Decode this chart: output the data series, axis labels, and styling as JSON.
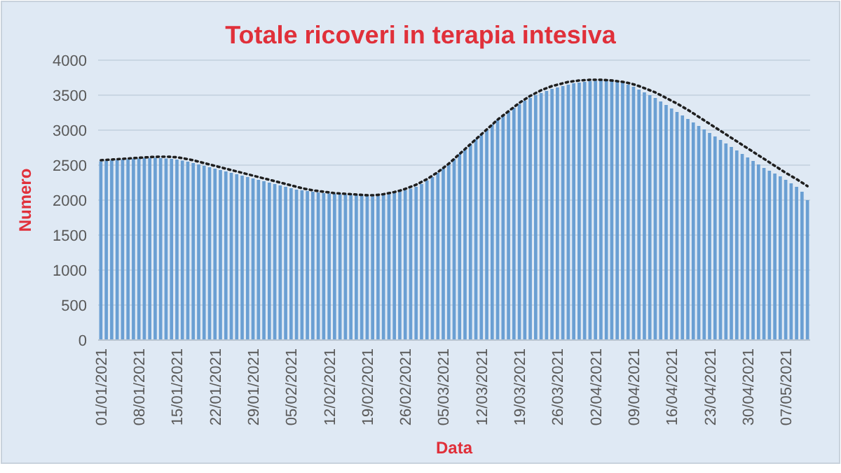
{
  "chart_data": {
    "type": "bar",
    "title": "Totale ricoveri in terapia intesiva",
    "xlabel": "Data",
    "ylabel": "Numero",
    "categories": [
      "01/01/2021",
      null,
      null,
      null,
      null,
      null,
      null,
      "08/01/2021",
      null,
      null,
      null,
      null,
      null,
      null,
      "15/01/2021",
      null,
      null,
      null,
      null,
      null,
      null,
      "22/01/2021",
      null,
      null,
      null,
      null,
      null,
      null,
      "29/01/2021",
      null,
      null,
      null,
      null,
      null,
      null,
      "05/02/2021",
      null,
      null,
      null,
      null,
      null,
      null,
      "12/02/2021",
      null,
      null,
      null,
      null,
      null,
      null,
      "19/02/2021",
      null,
      null,
      null,
      null,
      null,
      null,
      "26/02/2021",
      null,
      null,
      null,
      null,
      null,
      null,
      "05/03/2021",
      null,
      null,
      null,
      null,
      null,
      null,
      "12/03/2021",
      null,
      null,
      null,
      null,
      null,
      null,
      "19/03/2021",
      null,
      null,
      null,
      null,
      null,
      null,
      "26/03/2021",
      null,
      null,
      null,
      null,
      null,
      null,
      "02/04/2021",
      null,
      null,
      null,
      null,
      null,
      null,
      "09/04/2021",
      null,
      null,
      null,
      null,
      null,
      null,
      "16/04/2021",
      null,
      null,
      null,
      null,
      null,
      null,
      "23/04/2021",
      null,
      null,
      null,
      null,
      null,
      null,
      "30/04/2021",
      null,
      null,
      null,
      null,
      null,
      null,
      "07/05/2021",
      null,
      null,
      null,
      null
    ],
    "series": [
      {
        "color": "#6a9fd3",
        "values": [
          2555,
          2565,
          2570,
          2575,
          2580,
          2585,
          2590,
          2595,
          2600,
          2600,
          2605,
          2600,
          2595,
          2590,
          2580,
          2565,
          2550,
          2530,
          2510,
          2490,
          2470,
          2450,
          2430,
          2410,
          2390,
          2370,
          2350,
          2330,
          2310,
          2290,
          2270,
          2250,
          2230,
          2210,
          2190,
          2170,
          2150,
          2140,
          2130,
          2120,
          2110,
          2100,
          2095,
          2090,
          2085,
          2080,
          2075,
          2070,
          2065,
          2060,
          2055,
          2060,
          2070,
          2085,
          2100,
          2120,
          2140,
          2165,
          2190,
          2230,
          2280,
          2330,
          2390,
          2450,
          2520,
          2590,
          2660,
          2730,
          2800,
          2870,
          2940,
          3010,
          3080,
          3150,
          3210,
          3270,
          3320,
          3370,
          3420,
          3460,
          3500,
          3530,
          3560,
          3590,
          3610,
          3630,
          3650,
          3670,
          3680,
          3690,
          3700,
          3705,
          3710,
          3715,
          3710,
          3700,
          3680,
          3650,
          3620,
          3580,
          3540,
          3500,
          3460,
          3410,
          3360,
          3310,
          3260,
          3210,
          3160,
          3110,
          3060,
          3010,
          2960,
          2910,
          2860,
          2810,
          2760,
          2710,
          2660,
          2610,
          2560,
          2510,
          2460,
          2420,
          2380,
          2340,
          2290,
          2240,
          2190,
          2120,
          2000
        ]
      },
      {
        "type": "line",
        "color": "#1f1f1f",
        "line_style": "dotted",
        "values": [
          2570,
          2575,
          2580,
          2585,
          2590,
          2595,
          2600,
          2605,
          2610,
          2615,
          2618,
          2620,
          2620,
          2618,
          2612,
          2600,
          2585,
          2570,
          2550,
          2530,
          2510,
          2490,
          2470,
          2450,
          2430,
          2410,
          2390,
          2370,
          2350,
          2330,
          2310,
          2290,
          2270,
          2250,
          2230,
          2210,
          2190,
          2170,
          2155,
          2140,
          2130,
          2120,
          2110,
          2100,
          2095,
          2090,
          2085,
          2080,
          2075,
          2070,
          2070,
          2075,
          2085,
          2100,
          2115,
          2135,
          2160,
          2190,
          2220,
          2260,
          2300,
          2350,
          2400,
          2460,
          2520,
          2590,
          2660,
          2730,
          2800,
          2870,
          2940,
          3010,
          3080,
          3150,
          3210,
          3270,
          3330,
          3390,
          3440,
          3490,
          3530,
          3570,
          3600,
          3630,
          3650,
          3670,
          3690,
          3700,
          3710,
          3715,
          3720,
          3720,
          3720,
          3715,
          3710,
          3700,
          3690,
          3675,
          3655,
          3630,
          3600,
          3570,
          3540,
          3500,
          3460,
          3420,
          3380,
          3335,
          3290,
          3240,
          3190,
          3140,
          3090,
          3040,
          2990,
          2940,
          2890,
          2840,
          2790,
          2740,
          2690,
          2640,
          2590,
          2540,
          2490,
          2440,
          2390,
          2345,
          2300,
          2250,
          2200
        ]
      }
    ],
    "ylim": [
      0,
      4000
    ],
    "yticks": [
      0,
      500,
      1000,
      1500,
      2000,
      2500,
      3000,
      3500,
      4000
    ],
    "grid": "y"
  }
}
